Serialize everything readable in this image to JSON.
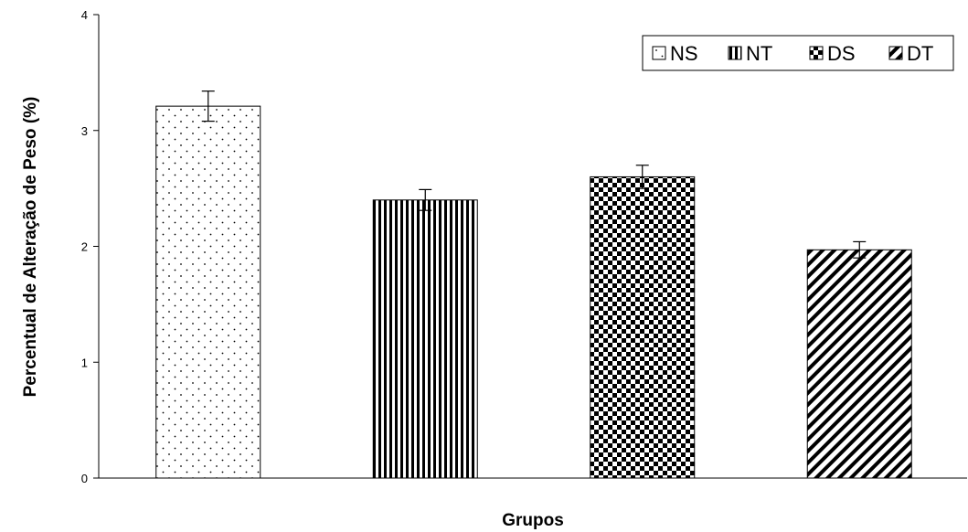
{
  "chart_data": {
    "type": "bar",
    "categories": [
      "NS",
      "NT",
      "DS",
      "DT"
    ],
    "values": [
      3.21,
      2.4,
      2.6,
      1.97
    ],
    "errors": [
      0.13,
      0.09,
      0.1,
      0.07
    ],
    "xlabel": "Grupos",
    "ylabel": "Percentual de Alteração de Peso (%)",
    "ylim": [
      0,
      4
    ],
    "yticks": [
      0,
      1,
      2,
      3,
      4
    ],
    "legend": {
      "position": "top-right",
      "entries": [
        "NS",
        "NT",
        "DS",
        "DT"
      ]
    },
    "patterns": [
      "dots",
      "vertical-stripes",
      "checkerboard",
      "diagonal-stripes"
    ],
    "grid": false
  }
}
